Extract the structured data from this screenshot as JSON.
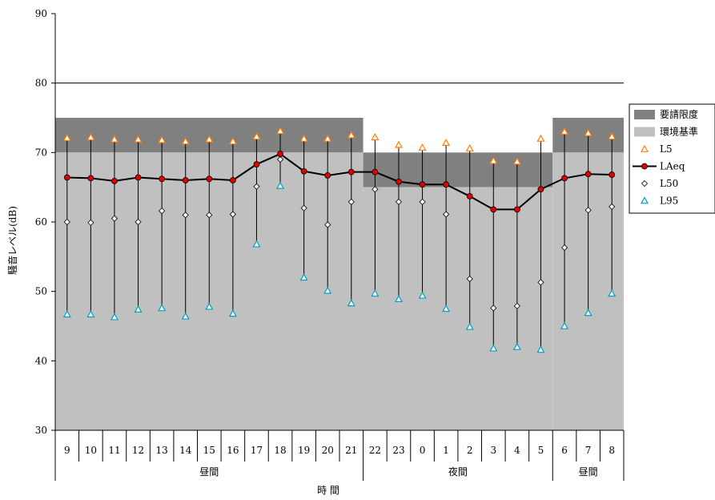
{
  "chart_data": {
    "type": "line",
    "xlabel": "時 間",
    "ylabel": "騒音レベル(dB)",
    "ylim": [
      30,
      90
    ],
    "yticks": [
      30,
      40,
      50,
      60,
      70,
      80,
      90
    ],
    "categories": [
      "9",
      "10",
      "11",
      "12",
      "13",
      "14",
      "15",
      "16",
      "17",
      "18",
      "19",
      "20",
      "21",
      "22",
      "23",
      "0",
      "1",
      "2",
      "3",
      "4",
      "5",
      "6",
      "7",
      "8"
    ],
    "period_groups": [
      {
        "label": "昼間",
        "from": 0,
        "to": 12
      },
      {
        "label": "夜間",
        "from": 13,
        "to": 20
      },
      {
        "label": "昼間",
        "from": 21,
        "to": 23
      }
    ],
    "zones": [
      {
        "name": "要請限度",
        "color": "#808080",
        "segments": [
          {
            "from": 0,
            "to": 12,
            "low": 70,
            "high": 75
          },
          {
            "from": 13,
            "to": 20,
            "low": 65,
            "high": 70
          },
          {
            "from": 21,
            "to": 23,
            "low": 70,
            "high": 75
          }
        ]
      },
      {
        "name": "環境基準",
        "color": "#c0c0c0",
        "segments": [
          {
            "from": 0,
            "to": 12,
            "low": 30,
            "high": 70
          },
          {
            "from": 13,
            "to": 20,
            "low": 30,
            "high": 65
          },
          {
            "from": 21,
            "to": 23,
            "low": 30,
            "high": 70
          }
        ]
      }
    ],
    "reference_line": 80,
    "series": [
      {
        "name": "L5",
        "marker": "triangle",
        "color": "#ff8000",
        "values": [
          72.1,
          72.2,
          71.9,
          71.9,
          71.8,
          71.6,
          71.9,
          71.6,
          72.3,
          73.1,
          72.0,
          72.0,
          72.5,
          72.2,
          71.1,
          70.7,
          71.4,
          70.6,
          68.8,
          68.7,
          72.0,
          73.0,
          72.8,
          72.3
        ]
      },
      {
        "name": "LAeq",
        "marker": "circle",
        "color": "#e00000",
        "values": [
          66.4,
          66.3,
          65.9,
          66.4,
          66.2,
          66.0,
          66.2,
          66.0,
          68.3,
          69.8,
          67.3,
          66.7,
          67.2,
          67.2,
          65.8,
          65.4,
          65.4,
          63.7,
          61.8,
          61.8,
          64.7,
          66.3,
          66.9,
          66.8
        ]
      },
      {
        "name": "L50",
        "marker": "diamond",
        "color": "#66aa00",
        "values": [
          60.0,
          59.9,
          60.5,
          60.0,
          61.6,
          61.0,
          61.0,
          61.1,
          65.1,
          69.0,
          62.0,
          59.6,
          62.9,
          64.7,
          62.9,
          62.9,
          61.1,
          51.8,
          47.6,
          47.9,
          51.3,
          56.3,
          61.7,
          62.2
        ]
      },
      {
        "name": "L95",
        "marker": "triangle",
        "color": "#00a0c0",
        "values": [
          46.7,
          46.7,
          46.3,
          47.4,
          47.6,
          46.4,
          47.8,
          46.8,
          56.8,
          65.2,
          52.0,
          50.1,
          48.3,
          49.7,
          48.9,
          49.4,
          47.5,
          44.9,
          41.8,
          42.0,
          41.6,
          45.0,
          46.9,
          49.7
        ]
      }
    ],
    "legend": {
      "position": "right",
      "items": [
        "要請限度",
        "環境基準",
        "L5",
        "LAeq",
        "L50",
        "L95"
      ]
    },
    "grid": false
  }
}
